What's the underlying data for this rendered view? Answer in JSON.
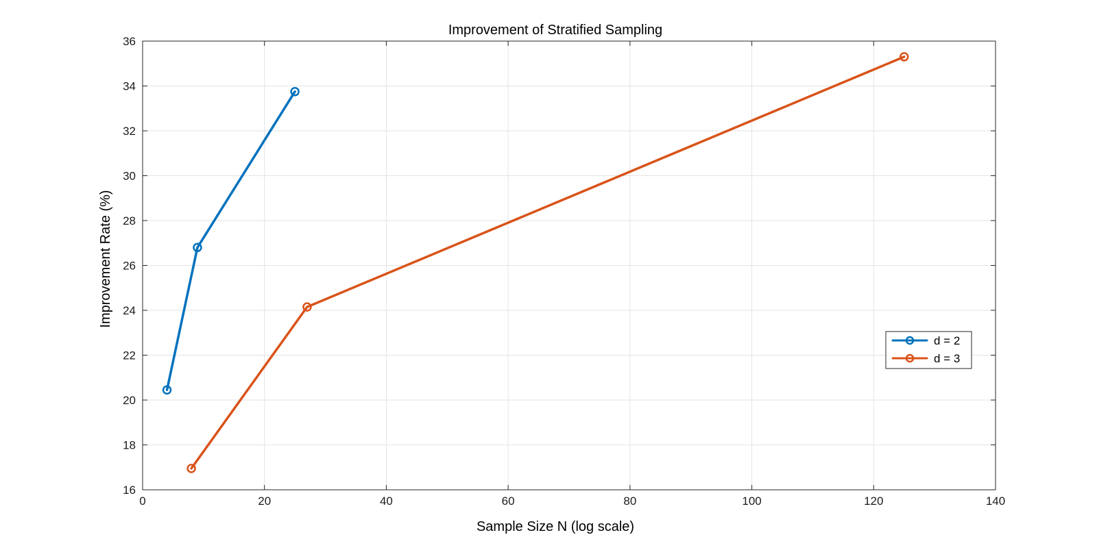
{
  "chart_data": {
    "type": "line",
    "title": "Improvement of Stratified Sampling",
    "xlabel": "Sample Size N (log scale)",
    "ylabel": "Improvement Rate (%)",
    "xlim": [
      0,
      140
    ],
    "ylim": [
      16,
      36
    ],
    "xticks": [
      0,
      20,
      40,
      60,
      80,
      100,
      120,
      140
    ],
    "yticks": [
      16,
      18,
      20,
      22,
      24,
      26,
      28,
      30,
      32,
      34,
      36
    ],
    "grid": true,
    "legend_position": "right",
    "series": [
      {
        "name": "d = 2",
        "color": "#0072BD",
        "marker": "circle",
        "x": [
          4,
          9,
          25
        ],
        "y": [
          20.45,
          26.8,
          33.75
        ]
      },
      {
        "name": "d = 3",
        "color": "#D95319",
        "marker": "circle",
        "x": [
          8,
          27,
          125
        ],
        "y": [
          16.95,
          24.15,
          35.3
        ]
      }
    ]
  }
}
